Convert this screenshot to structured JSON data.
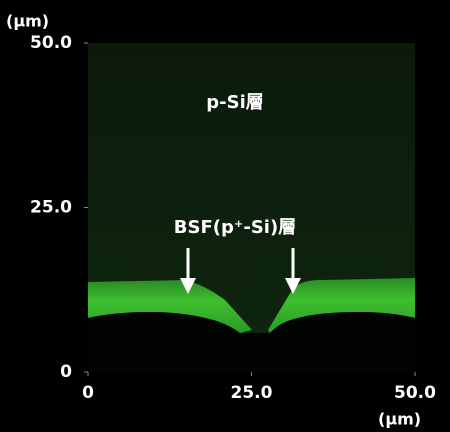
{
  "chart_data": {
    "type": "image",
    "x_label": "(μm)",
    "y_label": "(μm)",
    "xlim": [
      0,
      50
    ],
    "ylim": [
      0,
      50
    ],
    "xticks": [
      0,
      {
        "value": 25,
        "label": "25.0"
      },
      {
        "value": 50,
        "label": "50.0"
      }
    ],
    "yticks": [
      0,
      {
        "value": 25,
        "label": "25.0"
      },
      {
        "value": 50,
        "label": "50.0"
      }
    ],
    "annotations": [
      "p-Si層",
      "BSF(p⁺-Si)層"
    ]
  }
}
